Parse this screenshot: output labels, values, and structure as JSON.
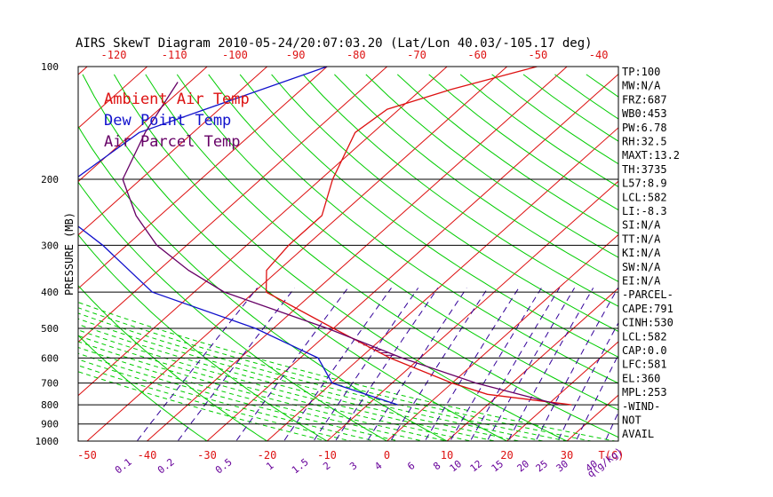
{
  "chart_data": {
    "type": "line",
    "title": "AIRS SkewT Diagram 2010-05-24/20:07:03.20 (Lat/Lon 40.03/-105.17 deg)",
    "ylabel": "PRESSURE (MB)",
    "xlabel": "T(C)",
    "mixing_ratio_label": "q(g/kg)",
    "y_scale": "log",
    "ylim": [
      1000,
      100
    ],
    "xlim": [
      -50,
      40
    ],
    "pressure_ticks": [
      100,
      200,
      300,
      400,
      500,
      600,
      700,
      800,
      900,
      1000
    ],
    "bottom_temp_ticks": [
      -50,
      -40,
      -30,
      -20,
      -10,
      0,
      10,
      20,
      30
    ],
    "top_temp_ticks": [
      -120,
      -110,
      -100,
      -90,
      -80,
      -70,
      -60,
      -50,
      -40
    ],
    "mixing_ratio_ticks": [
      "0.1",
      "0.2",
      "0.5",
      "1",
      "1.5",
      "2",
      "3",
      "4",
      "6",
      "8",
      "10",
      "12",
      "15",
      "20",
      "25",
      "30",
      "40"
    ],
    "legend": [
      {
        "name": "Ambient Air Temp",
        "color": "#dd1111"
      },
      {
        "name": "Dew Point Temp",
        "color": "#1111cc"
      },
      {
        "name": "Air Parcel Temp",
        "color": "#660066"
      }
    ],
    "series": [
      {
        "name": "Ambient Air Temp",
        "color": "#dd1111",
        "points": [
          [
            100,
            -45
          ],
          [
            115,
            -55
          ],
          [
            130,
            -62
          ],
          [
            150,
            -63
          ],
          [
            200,
            -58
          ],
          [
            250,
            -53
          ],
          [
            300,
            -53
          ],
          [
            350,
            -52
          ],
          [
            400,
            -48
          ],
          [
            500,
            -30
          ],
          [
            600,
            -15
          ],
          [
            700,
            0
          ],
          [
            750,
            8
          ],
          [
            800,
            24
          ]
        ]
      },
      {
        "name": "Dew Point Temp",
        "color": "#1111cc",
        "points": [
          [
            100,
            -80
          ],
          [
            150,
            -99
          ],
          [
            200,
            -101
          ],
          [
            250,
            -96
          ],
          [
            300,
            -84
          ],
          [
            400,
            -67
          ],
          [
            500,
            -43
          ],
          [
            600,
            -27
          ],
          [
            700,
            -20
          ],
          [
            800,
            -5
          ]
        ]
      },
      {
        "name": "Air Parcel Temp",
        "color": "#660066",
        "points": [
          [
            110,
            -102
          ],
          [
            150,
            -98
          ],
          [
            200,
            -93
          ],
          [
            250,
            -84
          ],
          [
            300,
            -75
          ],
          [
            350,
            -65
          ],
          [
            400,
            -55
          ],
          [
            500,
            -31
          ],
          [
            600,
            -13
          ],
          [
            700,
            4
          ],
          [
            800,
            22
          ]
        ]
      }
    ],
    "side_panel": [
      "TP:100",
      "MW:N/A",
      "FRZ:687",
      "WB0:453",
      "PW:6.78",
      "RH:32.5",
      "MAXT:13.2",
      "TH:3735",
      "L57:8.9",
      "LCL:582",
      "LI:-8.3",
      "SI:N/A",
      "TT:N/A",
      "KI:N/A",
      "SW:N/A",
      "EI:N/A",
      "-PARCEL-",
      "CAPE:791",
      "CINH:530",
      "LCL:582",
      "CAP:0.0",
      "LFC:581",
      "EL:360",
      "MPL:253",
      "-WIND-",
      "NOT",
      "AVAIL"
    ],
    "colors": {
      "isotherm": "#dd1111",
      "dry_adiabat": "#00cc00",
      "moist_adiabat": "#00cc00",
      "mixing_ratio": "#330099",
      "axis_label_red": "#dd1111",
      "axis_label_purple": "#660099",
      "cape_hatch": "#660066"
    }
  }
}
